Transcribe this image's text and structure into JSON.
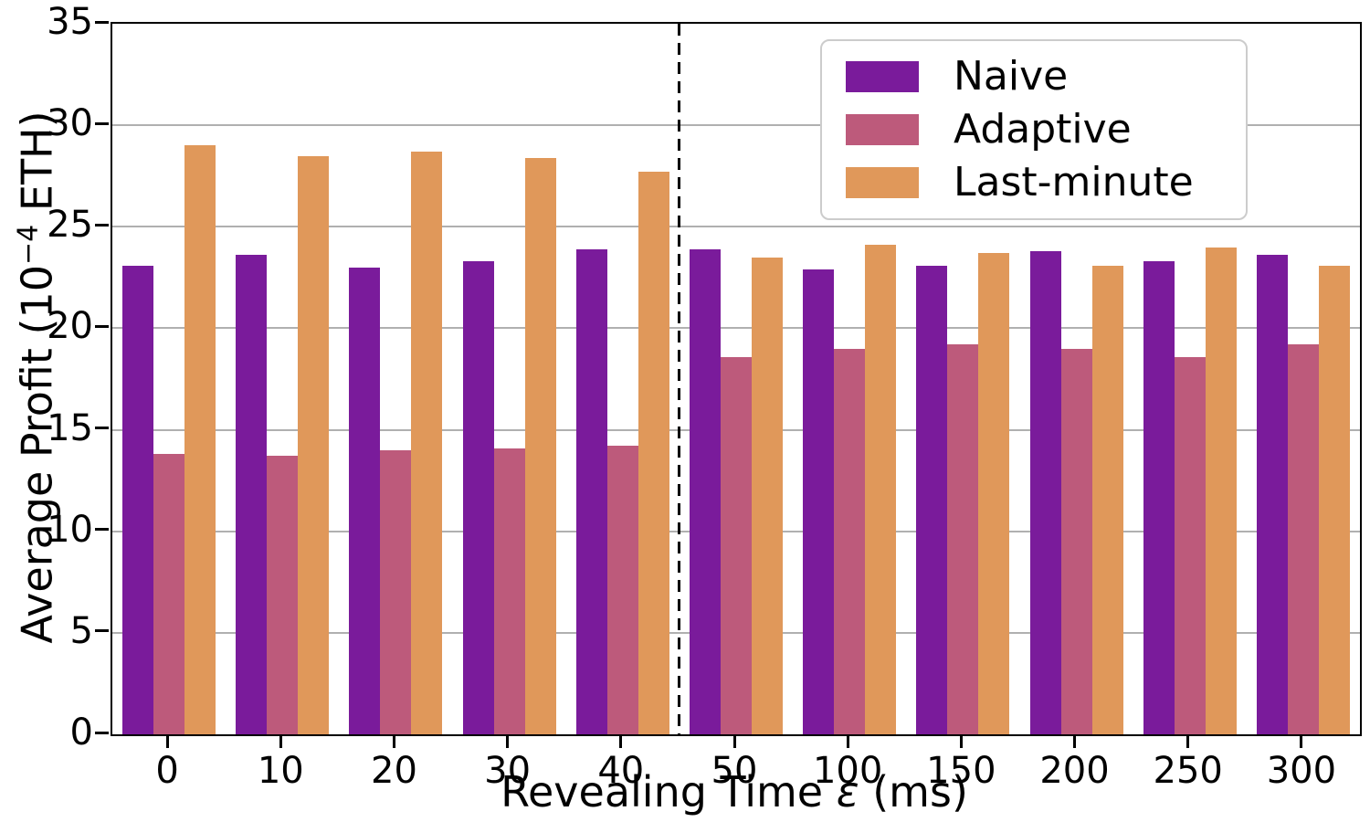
{
  "colors": {
    "naive": "#7a1b9b",
    "adaptive": "#bd5a7b",
    "last_minute": "#e0985a",
    "grid": "#b0b0b0",
    "spine": "#000000",
    "legend_border": "#cccccc"
  },
  "labels": {
    "ylabel_prefix": "Average Profit (10",
    "ylabel_sup": "−4",
    "ylabel_suffix": " ETH)",
    "xlabel_prefix": "Revealing Time ",
    "xlabel_symbol": "ε",
    "xlabel_suffix": " (ms)"
  },
  "chart_data": {
    "type": "bar",
    "title": "",
    "xlabel": "Revealing Time ε (ms)",
    "ylabel": "Average Profit (10⁻⁴ ETH)",
    "categories": [
      "0",
      "10",
      "20",
      "30",
      "40",
      "50",
      "100",
      "150",
      "200",
      "250",
      "300"
    ],
    "yticks": [
      0,
      5,
      10,
      15,
      20,
      25,
      30,
      35
    ],
    "ylim": [
      0,
      35
    ],
    "grid": true,
    "legend_position": "upper right",
    "separator_after_category": "40",
    "series": [
      {
        "name": "Naive",
        "color": "#7a1b9b",
        "values": [
          23.1,
          23.6,
          23.0,
          23.3,
          23.9,
          23.9,
          22.9,
          23.1,
          23.8,
          23.3,
          23.6
        ]
      },
      {
        "name": "Adaptive",
        "color": "#bd5a7b",
        "values": [
          13.8,
          13.7,
          14.0,
          14.1,
          14.2,
          18.6,
          19.0,
          19.2,
          19.0,
          18.6,
          19.2
        ]
      },
      {
        "name": "Last-minute",
        "color": "#e0985a",
        "values": [
          29.0,
          28.5,
          28.7,
          28.4,
          27.7,
          23.5,
          24.1,
          23.7,
          23.1,
          24.0,
          23.1
        ]
      }
    ]
  }
}
